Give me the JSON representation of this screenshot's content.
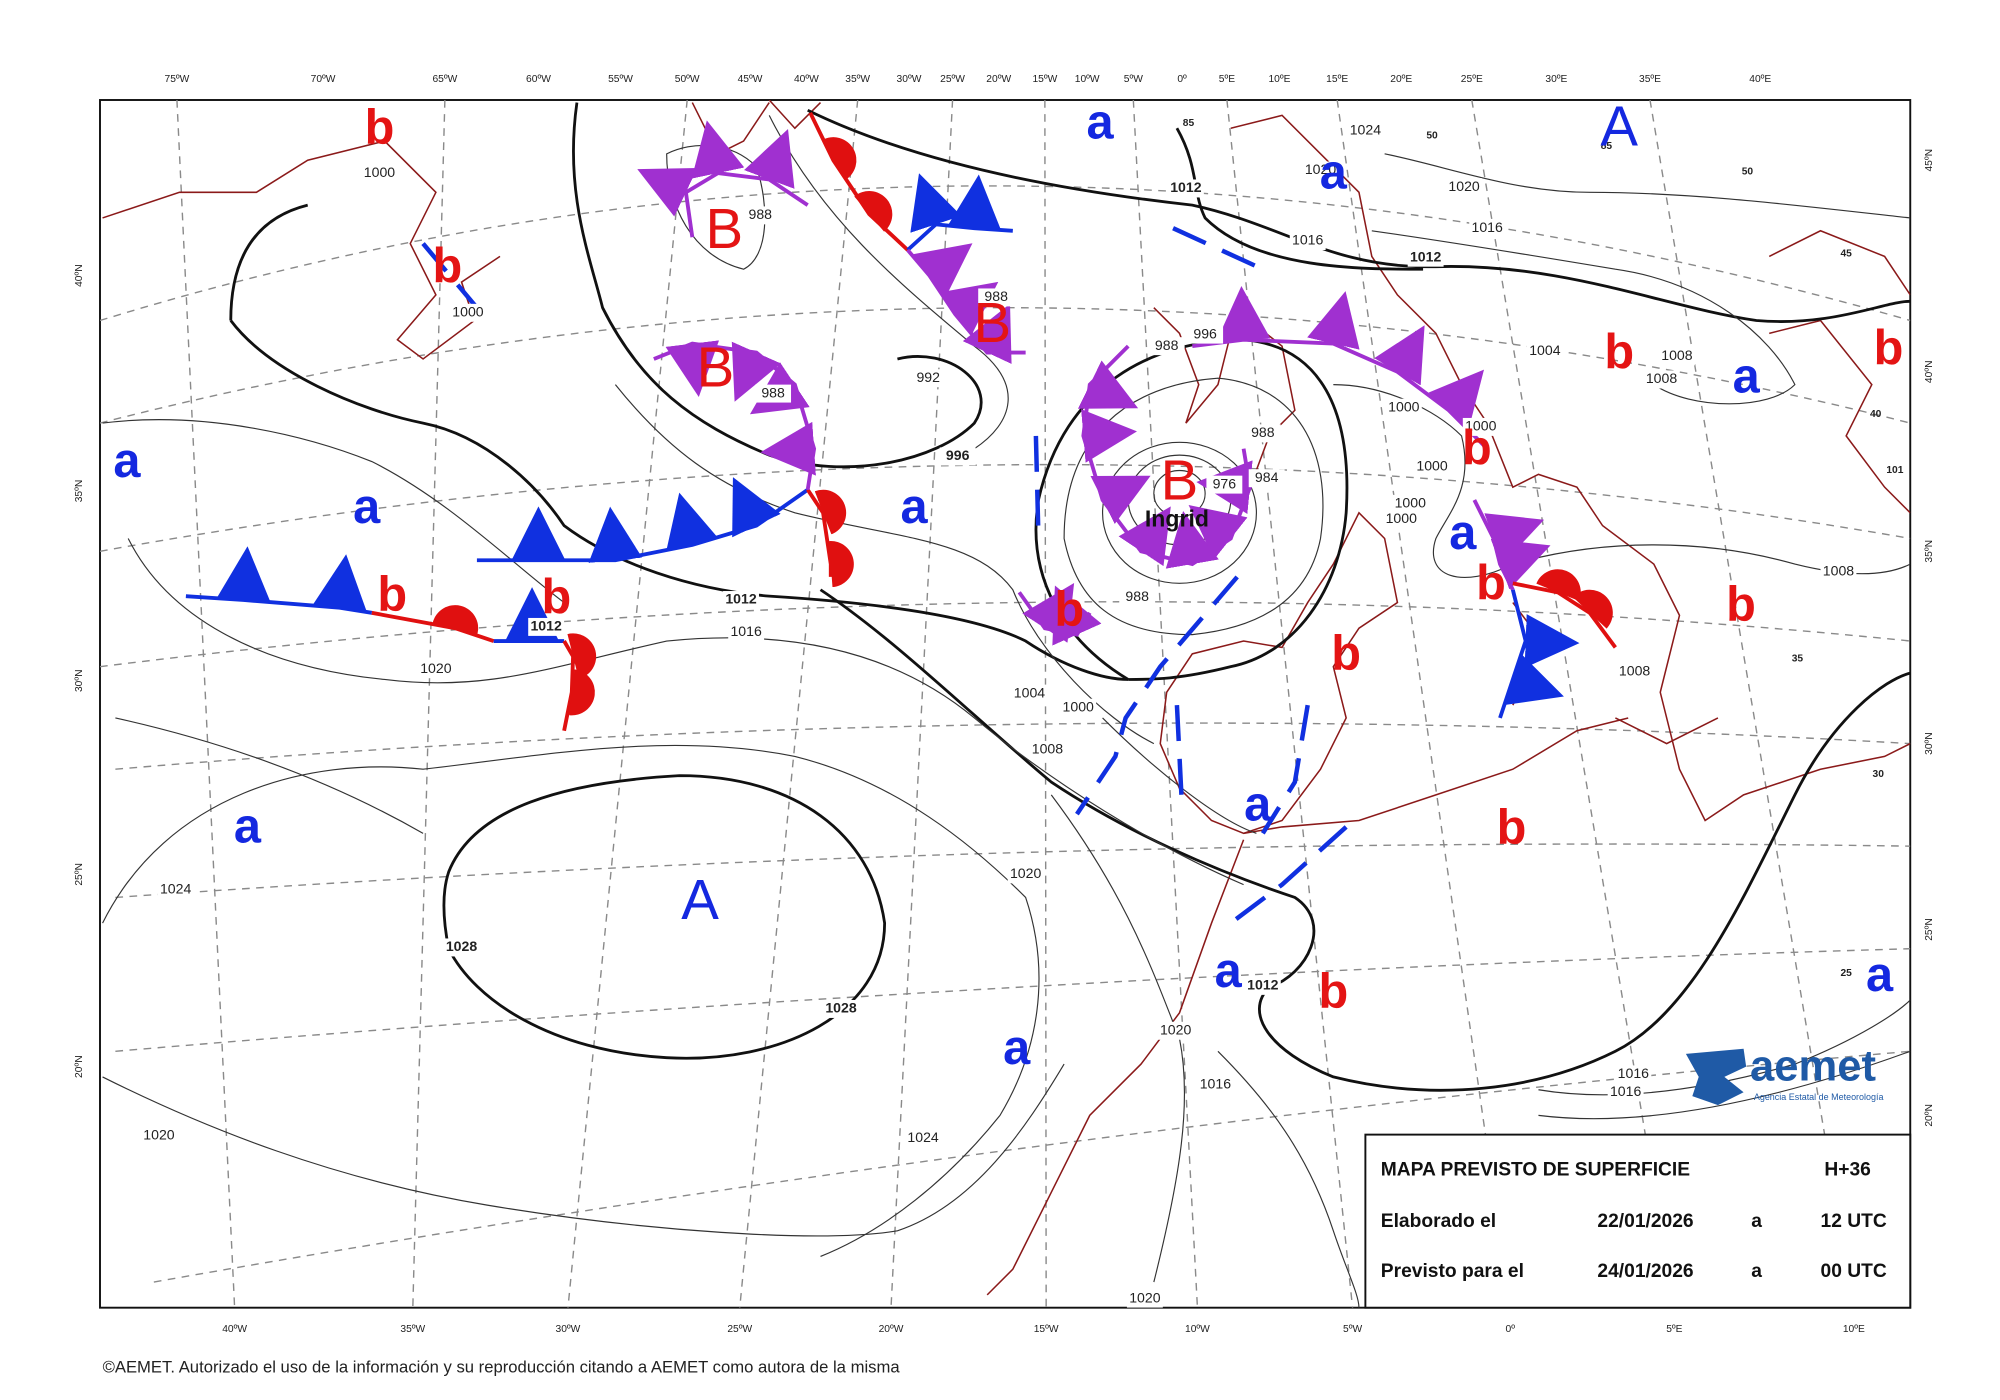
{
  "map": {
    "top_longitudes": [
      "75ºW",
      "70ºW",
      "65ºW",
      "60ºW",
      "55ºW",
      "50ºW",
      "45ºW",
      "40ºW",
      "35ºW",
      "30ºW",
      "25ºW",
      "20ºW",
      "15ºW",
      "10ºW",
      "5ºW",
      "0º",
      "5ºE",
      "10ºE",
      "15ºE",
      "20ºE",
      "25ºE",
      "30ºE",
      "35ºE",
      "40ºE"
    ],
    "bottom_longitudes": [
      "40ºW",
      "35ºW",
      "30ºW",
      "25ºW",
      "20ºW",
      "15ºW",
      "10ºW",
      "5ºW",
      "0º",
      "5ºE",
      "10ºE"
    ],
    "left_latitudes": [
      "40ºN",
      "35ºN",
      "30ºN",
      "25ºN",
      "20ºN"
    ],
    "right_latitudes": [
      "45ºN",
      "40ºN",
      "35ºN",
      "30ºN",
      "25ºN",
      "20ºN"
    ],
    "inner_labels": [
      "85",
      "50",
      "85",
      "50",
      "45",
      "40",
      "101",
      "35",
      "30",
      "25"
    ],
    "pressure_centers": [
      "b",
      "b",
      "B",
      "B",
      "B",
      "B",
      "a",
      "a",
      "a",
      "a",
      "a",
      "A",
      "b",
      "a",
      "b",
      "b",
      "a",
      "b",
      "b",
      "b",
      "b",
      "b",
      "b",
      "a",
      "b",
      "a",
      "A",
      "a",
      "b",
      "a",
      "a"
    ],
    "isobar_labels": [
      "1000",
      "1000",
      "1012",
      "1024",
      "1020",
      "1016",
      "1020",
      "1016",
      "1012",
      "1004",
      "1008",
      "1008",
      "1000",
      "1000",
      "1000",
      "1000",
      "1000",
      "988",
      "992",
      "988",
      "988",
      "996",
      "996",
      "988",
      "988",
      "984",
      "976",
      "1012",
      "1016",
      "1012",
      "1020",
      "1004",
      "1000",
      "1008",
      "988",
      "1020",
      "1024",
      "1028",
      "1028",
      "1020",
      "1012",
      "1016",
      "1024",
      "1020",
      "1020",
      "1016",
      "1016",
      "1008",
      "1008"
    ],
    "storm_name": "Ingrid"
  },
  "info_box": {
    "title": "MAPA PREVISTO DE SUPERFICIE",
    "lead_time": "H+36",
    "made_label": "Elaborado el",
    "made_date": "22/01/2026",
    "made_at": "a",
    "made_time": "12 UTC",
    "valid_label": "Previsto para el",
    "valid_date": "24/01/2026",
    "valid_at": "a",
    "valid_time": "00 UTC"
  },
  "logo": {
    "name": "aemet",
    "subtitle": "Agencia Estatal de Meteorología"
  },
  "footer": "©AEMET. Autorizado el uso de la información y su reproducción citando a AEMET como autora de la misma"
}
